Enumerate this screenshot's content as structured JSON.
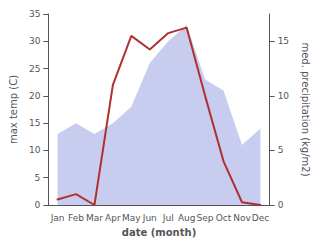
{
  "chart_data": {
    "type": "line",
    "xlabel": "date (month)",
    "ylabel": "max temp (C)",
    "y2label": "med. precipitation (kg/m2)",
    "categories": [
      "Jan",
      "Feb",
      "Mar",
      "Apr",
      "May",
      "Jun",
      "Jul",
      "Aug",
      "Sep",
      "Oct",
      "Nov",
      "Dec"
    ],
    "series": [
      {
        "type": "area",
        "axis": "y2",
        "color": "#b0b8e8",
        "values": [
          6.5,
          7.5,
          6.5,
          7.5,
          9.0,
          13.0,
          15.0,
          16.5,
          11.5,
          10.5,
          5.5,
          7.0
        ]
      },
      {
        "type": "line",
        "color": "#b03030",
        "values": [
          1.0,
          2.0,
          0.0,
          22.0,
          31.0,
          28.5,
          31.5,
          32.5,
          20.0,
          8.0,
          0.5,
          0.0
        ]
      }
    ],
    "ylim": [
      0,
      35
    ],
    "yticks": [
      0,
      5,
      10,
      15,
      20,
      25,
      30,
      35
    ],
    "y2lim": [
      0,
      17.5
    ],
    "y2ticks": [
      0,
      5,
      10,
      15
    ],
    "grid": false
  }
}
